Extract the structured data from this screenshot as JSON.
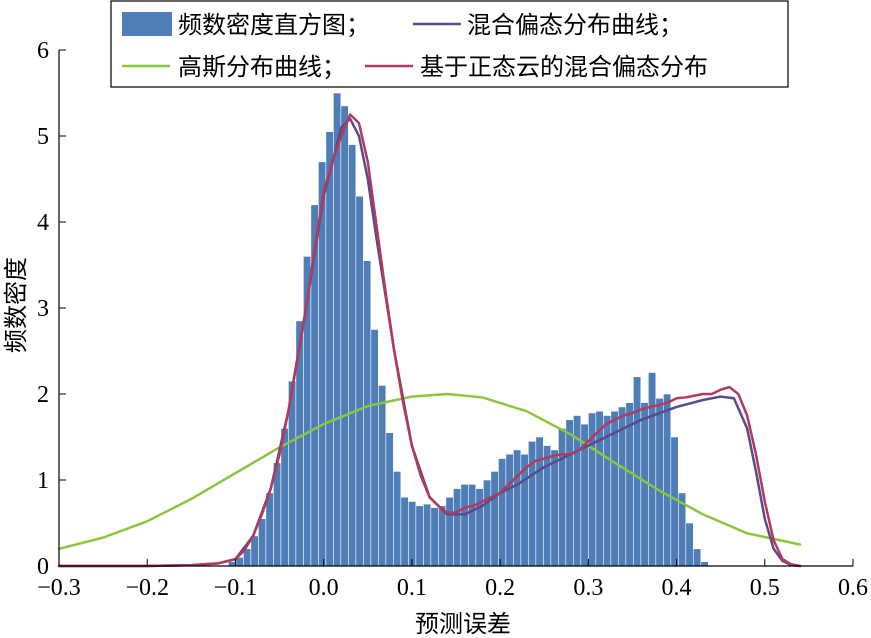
{
  "chart_data": {
    "type": "bar",
    "xlabel": "预测误差",
    "ylabel": "频数密度",
    "xlim": [
      -0.3,
      0.6
    ],
    "ylim": [
      0,
      6
    ],
    "xticks": [
      "−0.3",
      "−0.2",
      "−0.1",
      "0.0",
      "0.1",
      "0.2",
      "0.3",
      "0.4",
      "0.5",
      "0.6"
    ],
    "yticks": [
      "0",
      "1",
      "2",
      "3",
      "4",
      "5",
      "6"
    ],
    "bin_width": 0.0085,
    "histogram": {
      "name": "频数密度直方图",
      "color": "#4f7db7",
      "bin_left": [
        -0.108,
        -0.0995,
        -0.091,
        -0.0825,
        -0.074,
        -0.0655,
        -0.057,
        -0.0485,
        -0.04,
        -0.0315,
        -0.023,
        -0.0145,
        -0.006,
        0.0025,
        0.011,
        0.0195,
        0.028,
        0.0365,
        0.045,
        0.0535,
        0.062,
        0.0705,
        0.079,
        0.0875,
        0.096,
        0.1045,
        0.113,
        0.1215,
        0.13,
        0.1385,
        0.147,
        0.1555,
        0.164,
        0.1725,
        0.181,
        0.1895,
        0.198,
        0.2065,
        0.215,
        0.2235,
        0.232,
        0.2405,
        0.249,
        0.2575,
        0.266,
        0.2745,
        0.283,
        0.2915,
        0.3,
        0.3085,
        0.317,
        0.3255,
        0.334,
        0.3425,
        0.351,
        0.3595,
        0.368,
        0.3765,
        0.385,
        0.3935,
        0.402,
        0.4105,
        0.419,
        0.4275,
        0.436,
        0.4445,
        0.453,
        0.4615,
        0.47,
        0.4785,
        0.487,
        0.4955,
        0.504,
        0.5125,
        0.521
      ],
      "values": [
        0.05,
        0.1,
        0.2,
        0.35,
        0.55,
        0.85,
        1.2,
        1.6,
        2.15,
        2.85,
        3.6,
        4.2,
        4.7,
        5.05,
        5.5,
        5.35,
        4.9,
        4.3,
        3.55,
        2.75,
        2.1,
        1.55,
        1.1,
        0.8,
        0.75,
        0.7,
        0.72,
        0.68,
        0.7,
        0.8,
        0.9,
        0.95,
        0.95,
        0.9,
        1.0,
        1.1,
        1.25,
        1.3,
        1.35,
        1.3,
        1.45,
        1.5,
        1.4,
        1.35,
        1.6,
        1.7,
        1.75,
        1.65,
        1.78,
        1.8,
        1.75,
        1.8,
        1.85,
        1.9,
        2.2,
        1.9,
        2.25,
        1.95,
        2.0,
        1.5,
        0.85,
        0.5,
        0.2,
        0.05,
        0.0,
        0.0,
        0.0,
        0.0,
        0.0,
        0.0,
        0.0,
        0.0,
        0.0,
        0.0,
        0.0
      ]
    },
    "series": [
      {
        "name": "混合偏态分布曲线",
        "color": "#5b4a8b",
        "x": [
          -0.3,
          -0.2,
          -0.15,
          -0.12,
          -0.1,
          -0.08,
          -0.06,
          -0.04,
          -0.02,
          0.0,
          0.02,
          0.03,
          0.04,
          0.05,
          0.06,
          0.08,
          0.1,
          0.12,
          0.14,
          0.16,
          0.18,
          0.2,
          0.22,
          0.25,
          0.28,
          0.3,
          0.33,
          0.36,
          0.4,
          0.43,
          0.45,
          0.465,
          0.48,
          0.49,
          0.5,
          0.51,
          0.52,
          0.53,
          0.54
        ],
        "y": [
          0.0,
          0.0,
          0.01,
          0.03,
          0.08,
          0.35,
          0.9,
          1.8,
          3.0,
          4.3,
          5.1,
          5.2,
          5.0,
          4.5,
          3.8,
          2.5,
          1.4,
          0.8,
          0.6,
          0.6,
          0.7,
          0.85,
          0.95,
          1.15,
          1.3,
          1.4,
          1.55,
          1.7,
          1.85,
          1.93,
          1.97,
          1.95,
          1.6,
          1.1,
          0.55,
          0.2,
          0.06,
          0.01,
          0.0
        ]
      },
      {
        "name": "高斯分布曲线",
        "color": "#8cc63f",
        "x": [
          -0.3,
          -0.25,
          -0.2,
          -0.15,
          -0.1,
          -0.05,
          0.0,
          0.05,
          0.1,
          0.14,
          0.18,
          0.23,
          0.28,
          0.33,
          0.38,
          0.43,
          0.48,
          0.54
        ],
        "y": [
          0.2,
          0.33,
          0.52,
          0.78,
          1.08,
          1.38,
          1.65,
          1.86,
          1.97,
          2.0,
          1.96,
          1.8,
          1.53,
          1.2,
          0.88,
          0.6,
          0.38,
          0.25
        ]
      },
      {
        "name": "基于正态云的混合偏态分布",
        "color": "#b13a5e",
        "x": [
          -0.3,
          -0.2,
          -0.15,
          -0.12,
          -0.1,
          -0.09,
          -0.08,
          -0.07,
          -0.06,
          -0.05,
          -0.04,
          -0.03,
          -0.02,
          -0.01,
          0.0,
          0.01,
          0.02,
          0.03,
          0.04,
          0.05,
          0.06,
          0.07,
          0.08,
          0.09,
          0.1,
          0.11,
          0.12,
          0.13,
          0.14,
          0.15,
          0.16,
          0.17,
          0.18,
          0.19,
          0.2,
          0.21,
          0.22,
          0.23,
          0.24,
          0.25,
          0.26,
          0.27,
          0.28,
          0.29,
          0.3,
          0.31,
          0.32,
          0.33,
          0.34,
          0.35,
          0.36,
          0.37,
          0.38,
          0.39,
          0.4,
          0.41,
          0.42,
          0.43,
          0.44,
          0.45,
          0.46,
          0.47,
          0.48,
          0.49,
          0.5,
          0.51,
          0.52,
          0.53,
          0.54
        ],
        "y": [
          0.0,
          0.0,
          0.01,
          0.03,
          0.08,
          0.18,
          0.35,
          0.6,
          0.9,
          1.3,
          1.8,
          2.4,
          3.0,
          3.7,
          4.35,
          4.7,
          5.0,
          5.25,
          5.15,
          4.7,
          3.95,
          3.2,
          2.5,
          1.9,
          1.4,
          1.05,
          0.8,
          0.7,
          0.62,
          0.62,
          0.68,
          0.7,
          0.75,
          0.8,
          0.85,
          0.95,
          1.05,
          1.15,
          1.22,
          1.25,
          1.28,
          1.3,
          1.3,
          1.35,
          1.45,
          1.55,
          1.65,
          1.7,
          1.75,
          1.78,
          1.82,
          1.85,
          1.87,
          1.9,
          1.95,
          1.96,
          1.98,
          2.0,
          2.0,
          2.05,
          2.08,
          2.0,
          1.75,
          1.3,
          0.75,
          0.3,
          0.08,
          0.02,
          0.0
        ]
      }
    ],
    "legend": {
      "position": "top",
      "items": [
        {
          "label": "频数密度直方图；",
          "kind": "patch",
          "color": "#4f7db7"
        },
        {
          "label": "混合偏态分布曲线；",
          "kind": "line",
          "color": "#5b4a8b"
        },
        {
          "label": "高斯分布曲线；",
          "kind": "line",
          "color": "#8cc63f"
        },
        {
          "label": "基于正态云的混合偏态分布",
          "kind": "line",
          "color": "#b13a5e"
        }
      ]
    },
    "grid": false
  }
}
